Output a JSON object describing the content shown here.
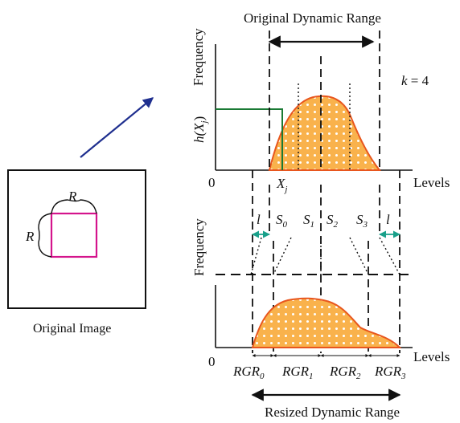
{
  "colors": {
    "curve_fill": "#f9b24c",
    "curve_stroke": "#e8561e",
    "magenta": "#d4148c",
    "green": "#1a7a34",
    "arrow_blue": "#1f2f8f",
    "teal": "#19a08a",
    "ink": "#111111"
  },
  "top_chart": {
    "title": "Original Dynamic Range",
    "ylabel": "Frequency",
    "func_h": "h(",
    "func_X": "X",
    "func_j": "j",
    "func_close": ")",
    "xlabel": "Levels",
    "origin": "0",
    "k_var": "k",
    "k_eq": " = 4",
    "xj_X": "X",
    "xj_j": "j"
  },
  "bottom_chart": {
    "ylabel": "Frequency",
    "xlabel": "Levels",
    "origin": "0",
    "l_left": "l",
    "l_right": "l",
    "segments": [
      {
        "S": "S",
        "sub": "0"
      },
      {
        "S": "S",
        "sub": "1"
      },
      {
        "S": "S",
        "sub": "2"
      },
      {
        "S": "S",
        "sub": "3"
      }
    ],
    "rgr": [
      {
        "main": "RGR",
        "sub": "0"
      },
      {
        "main": "RGR",
        "sub": "1"
      },
      {
        "main": "RGR",
        "sub": "2"
      },
      {
        "main": "RGR",
        "sub": "3"
      }
    ],
    "caption": "Resized Dynamic Range"
  },
  "image_panel": {
    "caption": "Original Image",
    "r_top": "R",
    "r_left": "R"
  }
}
